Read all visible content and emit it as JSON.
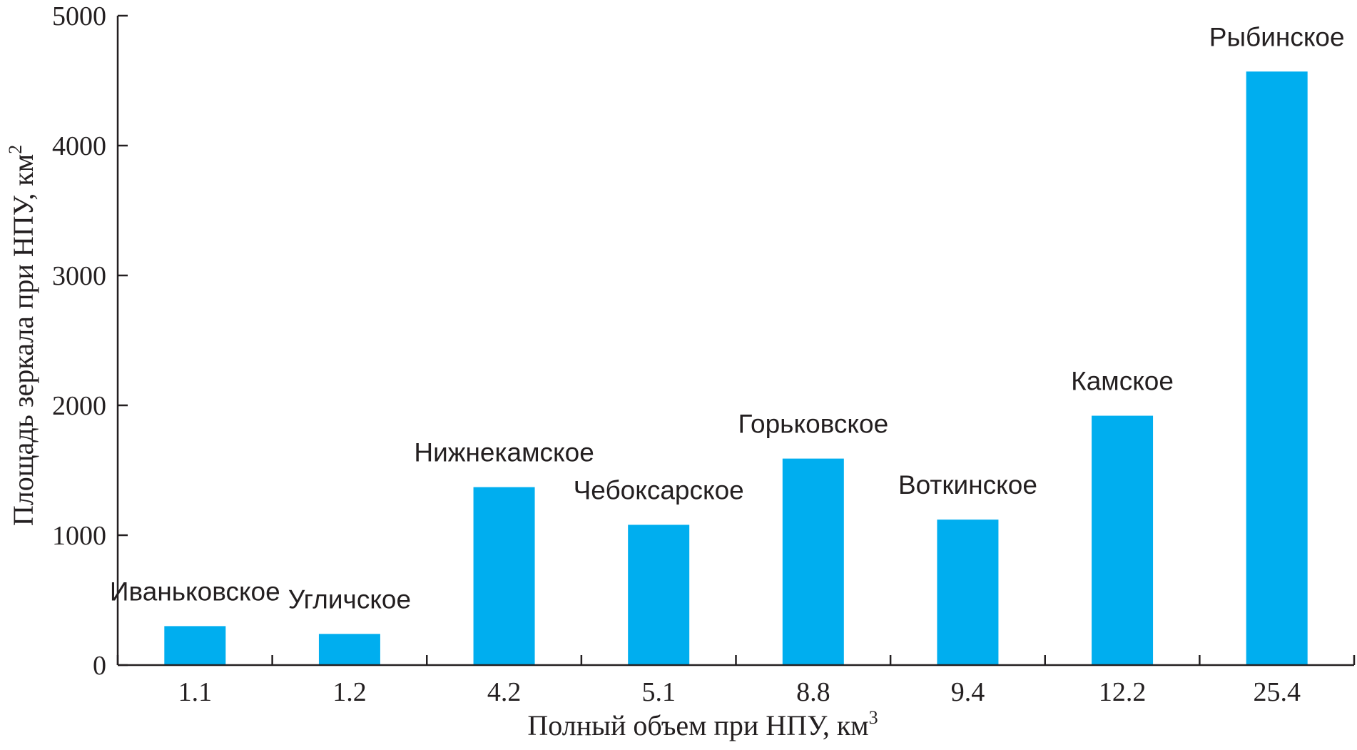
{
  "colors": {
    "bar": "#00aeef",
    "axis": "#231f20",
    "text": "#231f20"
  },
  "chart_data": {
    "type": "bar",
    "categories": [
      "1.1",
      "1.2",
      "4.2",
      "5.1",
      "8.8",
      "9.4",
      "12.2",
      "25.4"
    ],
    "values": [
      300,
      240,
      1370,
      1080,
      1590,
      1120,
      1920,
      4570
    ],
    "bar_labels": [
      "Иваньковское",
      "Угличское",
      "Нижнекамское",
      "Чебоксарское",
      "Горьковское",
      "Воткинское",
      "Камское",
      "Рыбинское"
    ],
    "title": "",
    "xlabel": "Полный объем при НПУ, км",
    "xlabel_sup": "3",
    "ylabel": "Площадь зеркала при НПУ, км",
    "ylabel_sup": "2",
    "ylim": [
      0,
      5000
    ],
    "yticks": [
      "0",
      "1000",
      "2000",
      "3000",
      "4000",
      "5000"
    ],
    "grid": false,
    "legend": "none"
  }
}
